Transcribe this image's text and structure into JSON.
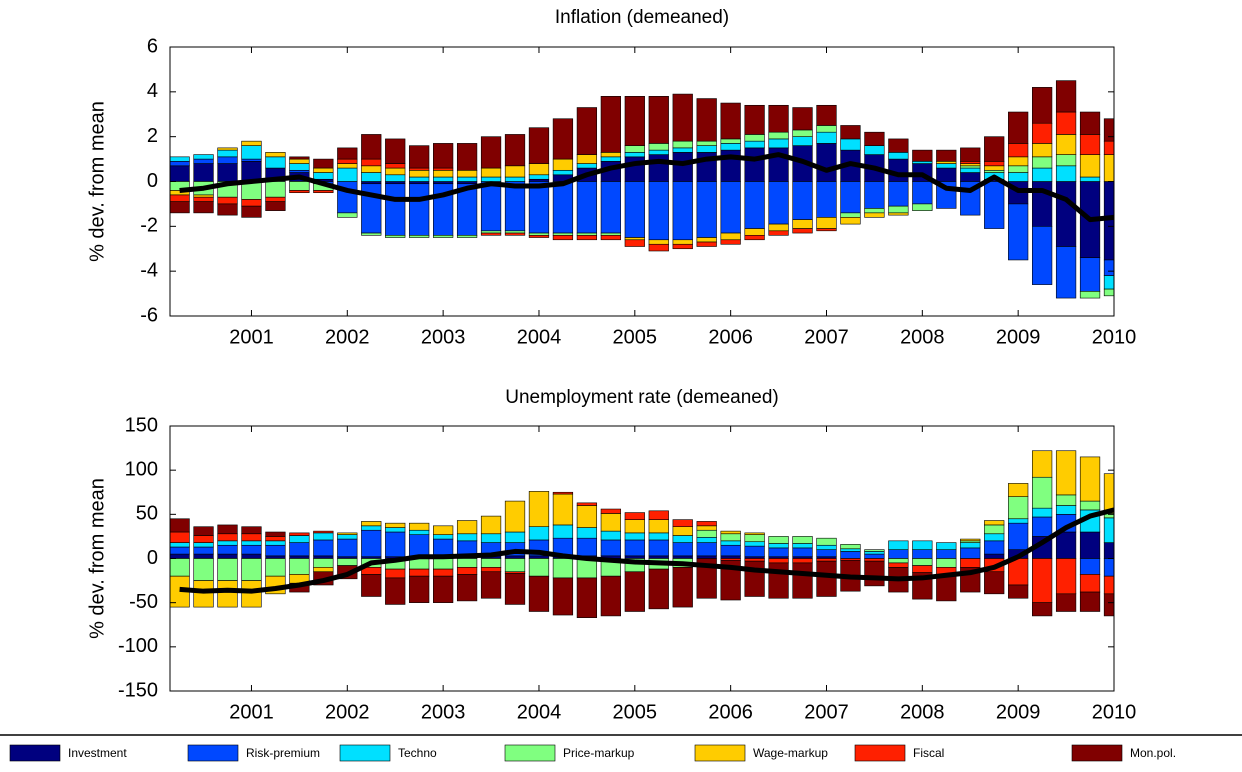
{
  "chart_data": [
    {
      "type": "bar",
      "stacked": true,
      "title": "Inflation (demeaned)",
      "ylabel": "% dev. from mean",
      "x": [
        2000.25,
        2000.5,
        2000.75,
        2001,
        2001.25,
        2001.5,
        2001.75,
        2002,
        2002.25,
        2002.5,
        2002.75,
        2003,
        2003.25,
        2003.5,
        2003.75,
        2004,
        2004.25,
        2004.5,
        2004.75,
        2005,
        2005.25,
        2005.5,
        2005.75,
        2006,
        2006.25,
        2006.5,
        2006.75,
        2007,
        2007.25,
        2007.5,
        2007.75,
        2008,
        2008.25,
        2008.5,
        2008.75,
        2009,
        2009.25,
        2009.5,
        2009.75,
        2010
      ],
      "xlim": [
        2000.15,
        2010
      ],
      "xticks": [
        2001,
        2002,
        2003,
        2004,
        2005,
        2006,
        2007,
        2008,
        2009,
        2010
      ],
      "ylim": [
        -6,
        6
      ],
      "yticks": [
        -6,
        -4,
        -2,
        0,
        2,
        4,
        6
      ],
      "series": [
        {
          "name": "Investment",
          "color": "#00007f",
          "values": [
            0.7,
            0.8,
            0.8,
            0.9,
            0.6,
            0.4,
            0.1,
            0.0,
            -0.1,
            -0.1,
            -0.1,
            -0.1,
            -0.1,
            0.0,
            0.0,
            0.1,
            0.3,
            0.6,
            0.9,
            1.1,
            1.2,
            1.3,
            1.3,
            1.4,
            1.5,
            1.5,
            1.6,
            1.7,
            1.4,
            1.2,
            1.0,
            0.8,
            0.6,
            0.4,
            0.1,
            -1.0,
            -2.0,
            -2.9,
            -3.4,
            -3.5
          ]
        },
        {
          "name": "Risk-premium",
          "color": "#0048ff",
          "values": [
            0.2,
            0.2,
            0.3,
            0.1,
            0.0,
            0.1,
            -0.1,
            -1.4,
            -2.2,
            -2.3,
            -2.3,
            -2.3,
            -2.3,
            -2.2,
            -2.2,
            -2.3,
            -2.3,
            -2.3,
            -2.3,
            -2.5,
            -2.6,
            -2.6,
            -2.5,
            -2.3,
            -2.1,
            -1.9,
            -1.7,
            -1.6,
            -1.4,
            -1.2,
            -1.1,
            -1.0,
            -1.2,
            -1.5,
            -2.1,
            -2.5,
            -2.6,
            -2.3,
            -1.5,
            -0.7
          ]
        },
        {
          "name": "Techno",
          "color": "#00e0ff",
          "values": [
            0.2,
            0.2,
            0.3,
            0.6,
            0.5,
            0.3,
            0.3,
            0.6,
            0.4,
            0.3,
            0.2,
            0.2,
            0.2,
            0.2,
            0.2,
            0.2,
            0.2,
            0.2,
            0.2,
            0.2,
            0.2,
            0.2,
            0.3,
            0.3,
            0.3,
            0.4,
            0.4,
            0.5,
            0.5,
            0.4,
            0.3,
            0.1,
            0.2,
            0.2,
            0.3,
            0.4,
            0.6,
            0.7,
            0.2,
            -0.6
          ]
        },
        {
          "name": "Price-markup",
          "color": "#80ff80",
          "values": [
            -0.4,
            -0.6,
            -0.7,
            -0.8,
            -0.7,
            -0.4,
            -0.3,
            -0.2,
            -0.1,
            -0.1,
            -0.1,
            -0.1,
            -0.1,
            -0.1,
            -0.1,
            -0.1,
            -0.1,
            -0.1,
            -0.1,
            0.3,
            0.3,
            0.3,
            0.2,
            0.2,
            0.3,
            0.3,
            0.3,
            0.3,
            -0.2,
            -0.2,
            -0.3,
            -0.3,
            0.0,
            0.1,
            0.1,
            0.3,
            0.5,
            0.5,
            -0.3,
            -0.3
          ]
        },
        {
          "name": "Wage-markup",
          "color": "#ffcc00",
          "values": [
            -0.2,
            -0.1,
            0.1,
            0.2,
            0.2,
            0.2,
            0.2,
            0.2,
            0.3,
            0.3,
            0.3,
            0.3,
            0.3,
            0.4,
            0.5,
            0.5,
            0.5,
            0.4,
            0.2,
            -0.1,
            -0.2,
            -0.2,
            -0.2,
            -0.3,
            -0.3,
            -0.3,
            -0.4,
            -0.5,
            -0.3,
            -0.2,
            -0.1,
            0.0,
            0.1,
            0.1,
            0.2,
            0.4,
            0.6,
            0.9,
            1.0,
            1.2
          ]
        },
        {
          "name": "Fiscal",
          "color": "#ff2000",
          "values": [
            -0.3,
            -0.2,
            -0.3,
            -0.3,
            -0.2,
            -0.1,
            -0.1,
            0.2,
            0.3,
            0.2,
            0.1,
            0.1,
            0.0,
            -0.1,
            -0.1,
            -0.1,
            -0.2,
            -0.2,
            -0.2,
            -0.3,
            -0.3,
            -0.2,
            -0.2,
            -0.2,
            -0.2,
            -0.2,
            -0.2,
            -0.1,
            0.0,
            0.0,
            0.0,
            0.0,
            0.0,
            0.1,
            0.2,
            0.6,
            0.9,
            1.0,
            0.9,
            0.6
          ]
        },
        {
          "name": "Mon.pol.",
          "color": "#800000",
          "values": [
            -0.5,
            -0.5,
            -0.5,
            -0.5,
            -0.4,
            0.1,
            0.4,
            0.5,
            1.1,
            1.1,
            1.0,
            1.1,
            1.2,
            1.4,
            1.4,
            1.6,
            1.8,
            2.1,
            2.5,
            2.2,
            2.1,
            2.1,
            1.9,
            1.6,
            1.3,
            1.2,
            1.0,
            0.9,
            0.6,
            0.6,
            0.6,
            0.5,
            0.5,
            0.6,
            1.1,
            1.4,
            1.6,
            1.4,
            1.0,
            1.0
          ]
        }
      ],
      "line": {
        "color": "#000000",
        "values": [
          -0.4,
          -0.3,
          -0.1,
          0.0,
          0.1,
          0.2,
          -0.1,
          -0.4,
          -0.6,
          -0.8,
          -0.8,
          -0.6,
          -0.3,
          -0.1,
          -0.2,
          -0.2,
          -0.1,
          0.3,
          0.6,
          0.8,
          0.9,
          0.8,
          1.0,
          1.1,
          1.0,
          1.2,
          0.9,
          0.5,
          0.8,
          0.6,
          0.3,
          0.3,
          -0.3,
          -0.4,
          0.2,
          -0.4,
          -0.4,
          -0.8,
          -1.7,
          -1.6
        ]
      }
    },
    {
      "type": "bar",
      "stacked": true,
      "title": "Unemployment rate (demeaned)",
      "ylabel": "% dev. from mean",
      "x": [
        2000.25,
        2000.5,
        2000.75,
        2001,
        2001.25,
        2001.5,
        2001.75,
        2002,
        2002.25,
        2002.5,
        2002.75,
        2003,
        2003.25,
        2003.5,
        2003.75,
        2004,
        2004.25,
        2004.5,
        2004.75,
        2005,
        2005.25,
        2005.5,
        2005.75,
        2006,
        2006.25,
        2006.5,
        2006.75,
        2007,
        2007.25,
        2007.5,
        2007.75,
        2008,
        2008.25,
        2008.5,
        2008.75,
        2009,
        2009.25,
        2009.5,
        2009.75,
        2010
      ],
      "xlim": [
        2000.15,
        2010
      ],
      "xticks": [
        2001,
        2002,
        2003,
        2004,
        2005,
        2006,
        2007,
        2008,
        2009,
        2010
      ],
      "ylim": [
        -150,
        150
      ],
      "yticks": [
        -150,
        -100,
        -50,
        0,
        50,
        100,
        150
      ],
      "series": [
        {
          "color": "#00007f",
          "values": [
            5,
            5,
            5,
            5,
            3,
            3,
            3,
            2,
            2,
            2,
            2,
            2,
            2,
            3,
            3,
            3,
            3,
            3,
            3,
            3,
            3,
            3,
            3,
            3,
            2,
            2,
            2,
            2,
            0,
            0,
            0,
            0,
            0,
            0,
            5,
            10,
            25,
            30,
            30,
            18
          ]
        },
        {
          "color": "#0048ff",
          "values": [
            8,
            8,
            10,
            10,
            12,
            15,
            18,
            20,
            30,
            28,
            25,
            20,
            18,
            15,
            15,
            18,
            20,
            20,
            18,
            18,
            18,
            15,
            15,
            12,
            12,
            10,
            10,
            8,
            8,
            5,
            10,
            10,
            10,
            12,
            15,
            30,
            22,
            20,
            -18,
            -20
          ]
        },
        {
          "color": "#00e0ff",
          "values": [
            5,
            5,
            5,
            5,
            5,
            8,
            8,
            5,
            5,
            5,
            5,
            5,
            8,
            10,
            12,
            15,
            15,
            12,
            10,
            8,
            8,
            8,
            6,
            5,
            5,
            5,
            5,
            5,
            3,
            3,
            10,
            10,
            8,
            6,
            8,
            5,
            10,
            10,
            25,
            28
          ]
        },
        {
          "color": "#80ff80",
          "values": [
            -20,
            -25,
            -25,
            -25,
            -20,
            -18,
            -10,
            -8,
            -10,
            -12,
            -12,
            -12,
            -10,
            -10,
            -15,
            -20,
            -22,
            -22,
            -20,
            -15,
            -12,
            -10,
            8,
            8,
            8,
            8,
            8,
            8,
            5,
            2,
            -5,
            -8,
            -10,
            2,
            10,
            25,
            35,
            12,
            10,
            5
          ]
        },
        {
          "color": "#ffcc00",
          "values": [
            -35,
            -30,
            -30,
            -30,
            -20,
            -10,
            -5,
            2,
            5,
            5,
            8,
            10,
            15,
            20,
            35,
            40,
            35,
            25,
            20,
            15,
            15,
            10,
            5,
            3,
            2,
            0,
            0,
            0,
            0,
            0,
            0,
            0,
            0,
            2,
            5,
            15,
            30,
            50,
            50,
            45
          ]
        },
        {
          "color": "#ff2000",
          "values": [
            12,
            8,
            8,
            8,
            5,
            3,
            2,
            0,
            -8,
            -10,
            -8,
            -8,
            -8,
            -5,
            -2,
            0,
            2,
            3,
            5,
            8,
            10,
            8,
            5,
            -2,
            -3,
            -5,
            -5,
            -3,
            -2,
            -3,
            -5,
            -8,
            -8,
            -10,
            -15,
            -30,
            -50,
            -40,
            -20,
            -20
          ]
        },
        {
          "color": "#800000",
          "values": [
            15,
            10,
            10,
            8,
            5,
            -10,
            -15,
            -15,
            -25,
            -30,
            -30,
            -30,
            -30,
            -30,
            -35,
            -40,
            -42,
            -45,
            -45,
            -45,
            -45,
            -45,
            -45,
            -45,
            -40,
            -40,
            -40,
            -40,
            -35,
            -28,
            -28,
            -30,
            -30,
            -28,
            -25,
            -15,
            -15,
            -20,
            -22,
            -25
          ]
        }
      ],
      "line": {
        "color": "#000000",
        "values": [
          -35,
          -37,
          -36,
          -37,
          -34,
          -30,
          -25,
          -18,
          -5,
          -2,
          2,
          2,
          3,
          4,
          8,
          7,
          3,
          0,
          -2,
          -4,
          -5,
          -6,
          -8,
          -10,
          -13,
          -15,
          -17,
          -19,
          -21,
          -22,
          -23,
          -22,
          -19,
          -16,
          -10,
          2,
          18,
          35,
          48,
          55
        ]
      }
    }
  ]
}
